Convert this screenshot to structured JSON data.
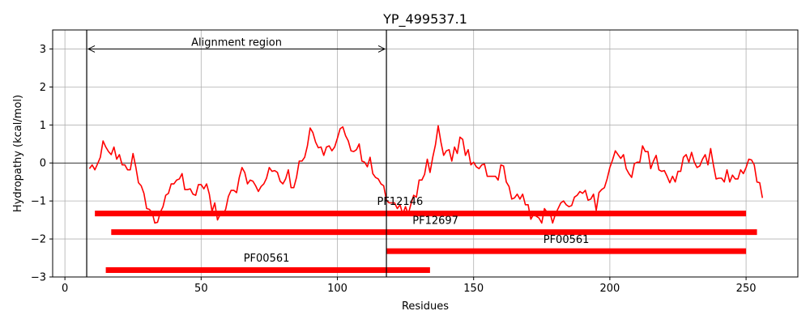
{
  "chart_data": {
    "type": "line",
    "title": "YP_499537.1",
    "xlabel": "Residues",
    "ylabel": "Hydropathy (kcal/mol)",
    "xlim": [
      -4.5,
      269
    ],
    "ylim": [
      -3,
      3.5
    ],
    "xticks": [
      0,
      50,
      100,
      150,
      200,
      250
    ],
    "xtick_labels": [
      "0",
      "50",
      "100",
      "150",
      "200",
      "250"
    ],
    "yticks": [
      -3,
      -2,
      -1,
      0,
      1,
      2,
      3
    ],
    "ytick_labels": [
      "−3",
      "−2",
      "−1",
      "0",
      "1",
      "2",
      "3"
    ],
    "grid": true,
    "colors": {
      "line": "#ff0000",
      "bar": "#ff0000",
      "grid": "#b0b0b0"
    },
    "series": [
      {
        "values": [
          [
            9,
            -0.15
          ],
          [
            10,
            -0.05
          ],
          [
            11,
            -0.18
          ],
          [
            12,
            -0.02
          ],
          [
            13,
            0.15
          ],
          [
            14,
            0.58
          ],
          [
            15,
            0.42
          ],
          [
            16,
            0.3
          ],
          [
            17,
            0.22
          ],
          [
            18,
            0.42
          ],
          [
            19,
            0.1
          ],
          [
            20,
            0.22
          ],
          [
            21,
            -0.05
          ],
          [
            22,
            -0.05
          ],
          [
            23,
            -0.18
          ],
          [
            24,
            -0.18
          ],
          [
            25,
            0.25
          ],
          [
            26,
            -0.1
          ],
          [
            27,
            -0.52
          ],
          [
            28,
            -0.6
          ],
          [
            29,
            -0.8
          ],
          [
            30,
            -1.2
          ],
          [
            31,
            -1.22
          ],
          [
            32,
            -1.3
          ],
          [
            33,
            -1.58
          ],
          [
            34,
            -1.56
          ],
          [
            35,
            -1.3
          ],
          [
            36,
            -1.15
          ],
          [
            37,
            -0.85
          ],
          [
            38,
            -0.8
          ],
          [
            39,
            -0.55
          ],
          [
            40,
            -0.55
          ],
          [
            41,
            -0.45
          ],
          [
            42,
            -0.42
          ],
          [
            43,
            -0.28
          ],
          [
            44,
            -0.7
          ],
          [
            45,
            -0.7
          ],
          [
            46,
            -0.68
          ],
          [
            47,
            -0.82
          ],
          [
            48,
            -0.85
          ],
          [
            49,
            -0.57
          ],
          [
            50,
            -0.57
          ],
          [
            51,
            -0.68
          ],
          [
            52,
            -0.55
          ],
          [
            53,
            -0.82
          ],
          [
            54,
            -1.28
          ],
          [
            55,
            -1.05
          ],
          [
            56,
            -1.5
          ],
          [
            57,
            -1.35
          ],
          [
            58,
            -1.35
          ],
          [
            59,
            -1.22
          ],
          [
            60,
            -0.88
          ],
          [
            61,
            -0.72
          ],
          [
            62,
            -0.72
          ],
          [
            63,
            -0.78
          ],
          [
            64,
            -0.38
          ],
          [
            65,
            -0.12
          ],
          [
            66,
            -0.25
          ],
          [
            67,
            -0.55
          ],
          [
            68,
            -0.45
          ],
          [
            69,
            -0.48
          ],
          [
            70,
            -0.6
          ],
          [
            71,
            -0.75
          ],
          [
            72,
            -0.62
          ],
          [
            73,
            -0.55
          ],
          [
            74,
            -0.4
          ],
          [
            75,
            -0.12
          ],
          [
            76,
            -0.22
          ],
          [
            77,
            -0.2
          ],
          [
            78,
            -0.25
          ],
          [
            79,
            -0.48
          ],
          [
            80,
            -0.55
          ],
          [
            81,
            -0.42
          ],
          [
            82,
            -0.18
          ],
          [
            83,
            -0.65
          ],
          [
            84,
            -0.65
          ],
          [
            85,
            -0.38
          ],
          [
            86,
            0.05
          ],
          [
            87,
            0.05
          ],
          [
            88,
            0.15
          ],
          [
            89,
            0.45
          ],
          [
            90,
            0.92
          ],
          [
            91,
            0.8
          ],
          [
            92,
            0.55
          ],
          [
            93,
            0.4
          ],
          [
            94,
            0.42
          ],
          [
            95,
            0.2
          ],
          [
            96,
            0.42
          ],
          [
            97,
            0.45
          ],
          [
            98,
            0.32
          ],
          [
            99,
            0.42
          ],
          [
            100,
            0.65
          ],
          [
            101,
            0.9
          ],
          [
            102,
            0.95
          ],
          [
            103,
            0.72
          ],
          [
            104,
            0.58
          ],
          [
            105,
            0.32
          ],
          [
            106,
            0.3
          ],
          [
            107,
            0.35
          ],
          [
            108,
            0.5
          ],
          [
            109,
            0.05
          ],
          [
            110,
            0.02
          ],
          [
            111,
            -0.1
          ],
          [
            112,
            0.15
          ],
          [
            113,
            -0.28
          ],
          [
            114,
            -0.38
          ],
          [
            115,
            -0.42
          ],
          [
            116,
            -0.55
          ],
          [
            117,
            -0.6
          ],
          [
            118,
            -0.98
          ],
          [
            119,
            -1.05
          ],
          [
            120,
            -1.05
          ],
          [
            121,
            -1.05
          ],
          [
            122,
            -1.2
          ],
          [
            123,
            -1.1
          ],
          [
            124,
            -1.35
          ],
          [
            125,
            -1.15
          ],
          [
            126,
            -1.35
          ],
          [
            127,
            -1.08
          ],
          [
            128,
            -0.85
          ],
          [
            129,
            -0.9
          ],
          [
            130,
            -0.45
          ],
          [
            131,
            -0.45
          ],
          [
            132,
            -0.3
          ],
          [
            133,
            0.1
          ],
          [
            134,
            -0.25
          ],
          [
            135,
            0.15
          ],
          [
            136,
            0.48
          ],
          [
            137,
            0.98
          ],
          [
            138,
            0.55
          ],
          [
            139,
            0.2
          ],
          [
            140,
            0.32
          ],
          [
            141,
            0.35
          ],
          [
            142,
            0.05
          ],
          [
            143,
            0.42
          ],
          [
            144,
            0.25
          ],
          [
            145,
            0.68
          ],
          [
            146,
            0.62
          ],
          [
            147,
            0.2
          ],
          [
            148,
            0.35
          ],
          [
            149,
            -0.05
          ],
          [
            150,
            0.02
          ],
          [
            151,
            -0.1
          ],
          [
            152,
            -0.15
          ],
          [
            153,
            -0.05
          ],
          [
            154,
            -0.03
          ],
          [
            155,
            -0.35
          ],
          [
            156,
            -0.35
          ],
          [
            157,
            -0.35
          ],
          [
            158,
            -0.35
          ],
          [
            159,
            -0.45
          ],
          [
            160,
            -0.05
          ],
          [
            161,
            -0.08
          ],
          [
            162,
            -0.5
          ],
          [
            163,
            -0.62
          ],
          [
            164,
            -0.95
          ],
          [
            165,
            -0.92
          ],
          [
            166,
            -0.82
          ],
          [
            167,
            -0.95
          ],
          [
            168,
            -0.82
          ],
          [
            169,
            -1.1
          ],
          [
            170,
            -1.1
          ],
          [
            171,
            -1.48
          ],
          [
            172,
            -1.35
          ],
          [
            173,
            -1.4
          ],
          [
            174,
            -1.45
          ],
          [
            175,
            -1.58
          ],
          [
            176,
            -1.2
          ],
          [
            177,
            -1.3
          ],
          [
            178,
            -1.3
          ],
          [
            179,
            -1.58
          ],
          [
            180,
            -1.35
          ],
          [
            181,
            -1.2
          ],
          [
            182,
            -1.05
          ],
          [
            183,
            -1.0
          ],
          [
            184,
            -1.1
          ],
          [
            185,
            -1.15
          ],
          [
            186,
            -1.12
          ],
          [
            187,
            -0.9
          ],
          [
            188,
            -0.85
          ],
          [
            189,
            -0.75
          ],
          [
            190,
            -0.8
          ],
          [
            191,
            -0.72
          ],
          [
            192,
            -0.98
          ],
          [
            193,
            -0.95
          ],
          [
            194,
            -0.82
          ],
          [
            195,
            -1.25
          ],
          [
            196,
            -0.78
          ],
          [
            197,
            -0.7
          ],
          [
            198,
            -0.65
          ],
          [
            199,
            -0.42
          ],
          [
            200,
            -0.12
          ],
          [
            201,
            0.08
          ],
          [
            202,
            0.32
          ],
          [
            203,
            0.22
          ],
          [
            204,
            0.12
          ],
          [
            205,
            0.22
          ],
          [
            206,
            -0.15
          ],
          [
            207,
            -0.28
          ],
          [
            208,
            -0.38
          ],
          [
            209,
            -0.02
          ],
          [
            210,
            0.02
          ],
          [
            211,
            0.02
          ],
          [
            212,
            0.45
          ],
          [
            213,
            0.3
          ],
          [
            214,
            0.3
          ],
          [
            215,
            -0.15
          ],
          [
            216,
            0.05
          ],
          [
            217,
            0.2
          ],
          [
            218,
            -0.18
          ],
          [
            219,
            -0.22
          ],
          [
            220,
            -0.2
          ],
          [
            221,
            -0.35
          ],
          [
            222,
            -0.52
          ],
          [
            223,
            -0.35
          ],
          [
            224,
            -0.5
          ],
          [
            225,
            -0.22
          ],
          [
            226,
            -0.22
          ],
          [
            227,
            0.15
          ],
          [
            228,
            0.22
          ],
          [
            229,
            0.02
          ],
          [
            230,
            0.28
          ],
          [
            231,
            0.02
          ],
          [
            232,
            -0.12
          ],
          [
            233,
            -0.08
          ],
          [
            234,
            0.1
          ],
          [
            235,
            0.22
          ],
          [
            236,
            -0.05
          ],
          [
            237,
            0.38
          ],
          [
            238,
            -0.05
          ],
          [
            239,
            -0.42
          ],
          [
            240,
            -0.4
          ],
          [
            241,
            -0.4
          ],
          [
            242,
            -0.5
          ],
          [
            243,
            -0.18
          ],
          [
            244,
            -0.5
          ],
          [
            245,
            -0.32
          ],
          [
            246,
            -0.42
          ],
          [
            247,
            -0.42
          ],
          [
            248,
            -0.18
          ],
          [
            249,
            -0.28
          ],
          [
            250,
            -0.12
          ],
          [
            251,
            0.1
          ],
          [
            252,
            0.08
          ],
          [
            253,
            -0.05
          ],
          [
            254,
            -0.5
          ],
          [
            255,
            -0.52
          ],
          [
            256,
            -0.92
          ]
        ]
      }
    ],
    "alignment_region": {
      "label": "Alignment region",
      "start": 8,
      "end": 118,
      "arrow_y": 3
    },
    "domains": [
      {
        "label": "PF12146",
        "start": 11,
        "end": 250,
        "y": -1.33,
        "label_x": 123,
        "label_y": -1.1
      },
      {
        "label": "PF12697",
        "start": 17,
        "end": 254,
        "y": -1.82,
        "label_x": 136,
        "label_y": -1.6
      },
      {
        "label": "PF00561",
        "start": 118,
        "end": 250,
        "y": -2.32,
        "label_x": 184,
        "label_y": -2.1
      },
      {
        "label": "PF00561",
        "start": 15,
        "end": 134,
        "y": -2.82,
        "label_x": 74,
        "label_y": -2.6
      }
    ]
  }
}
